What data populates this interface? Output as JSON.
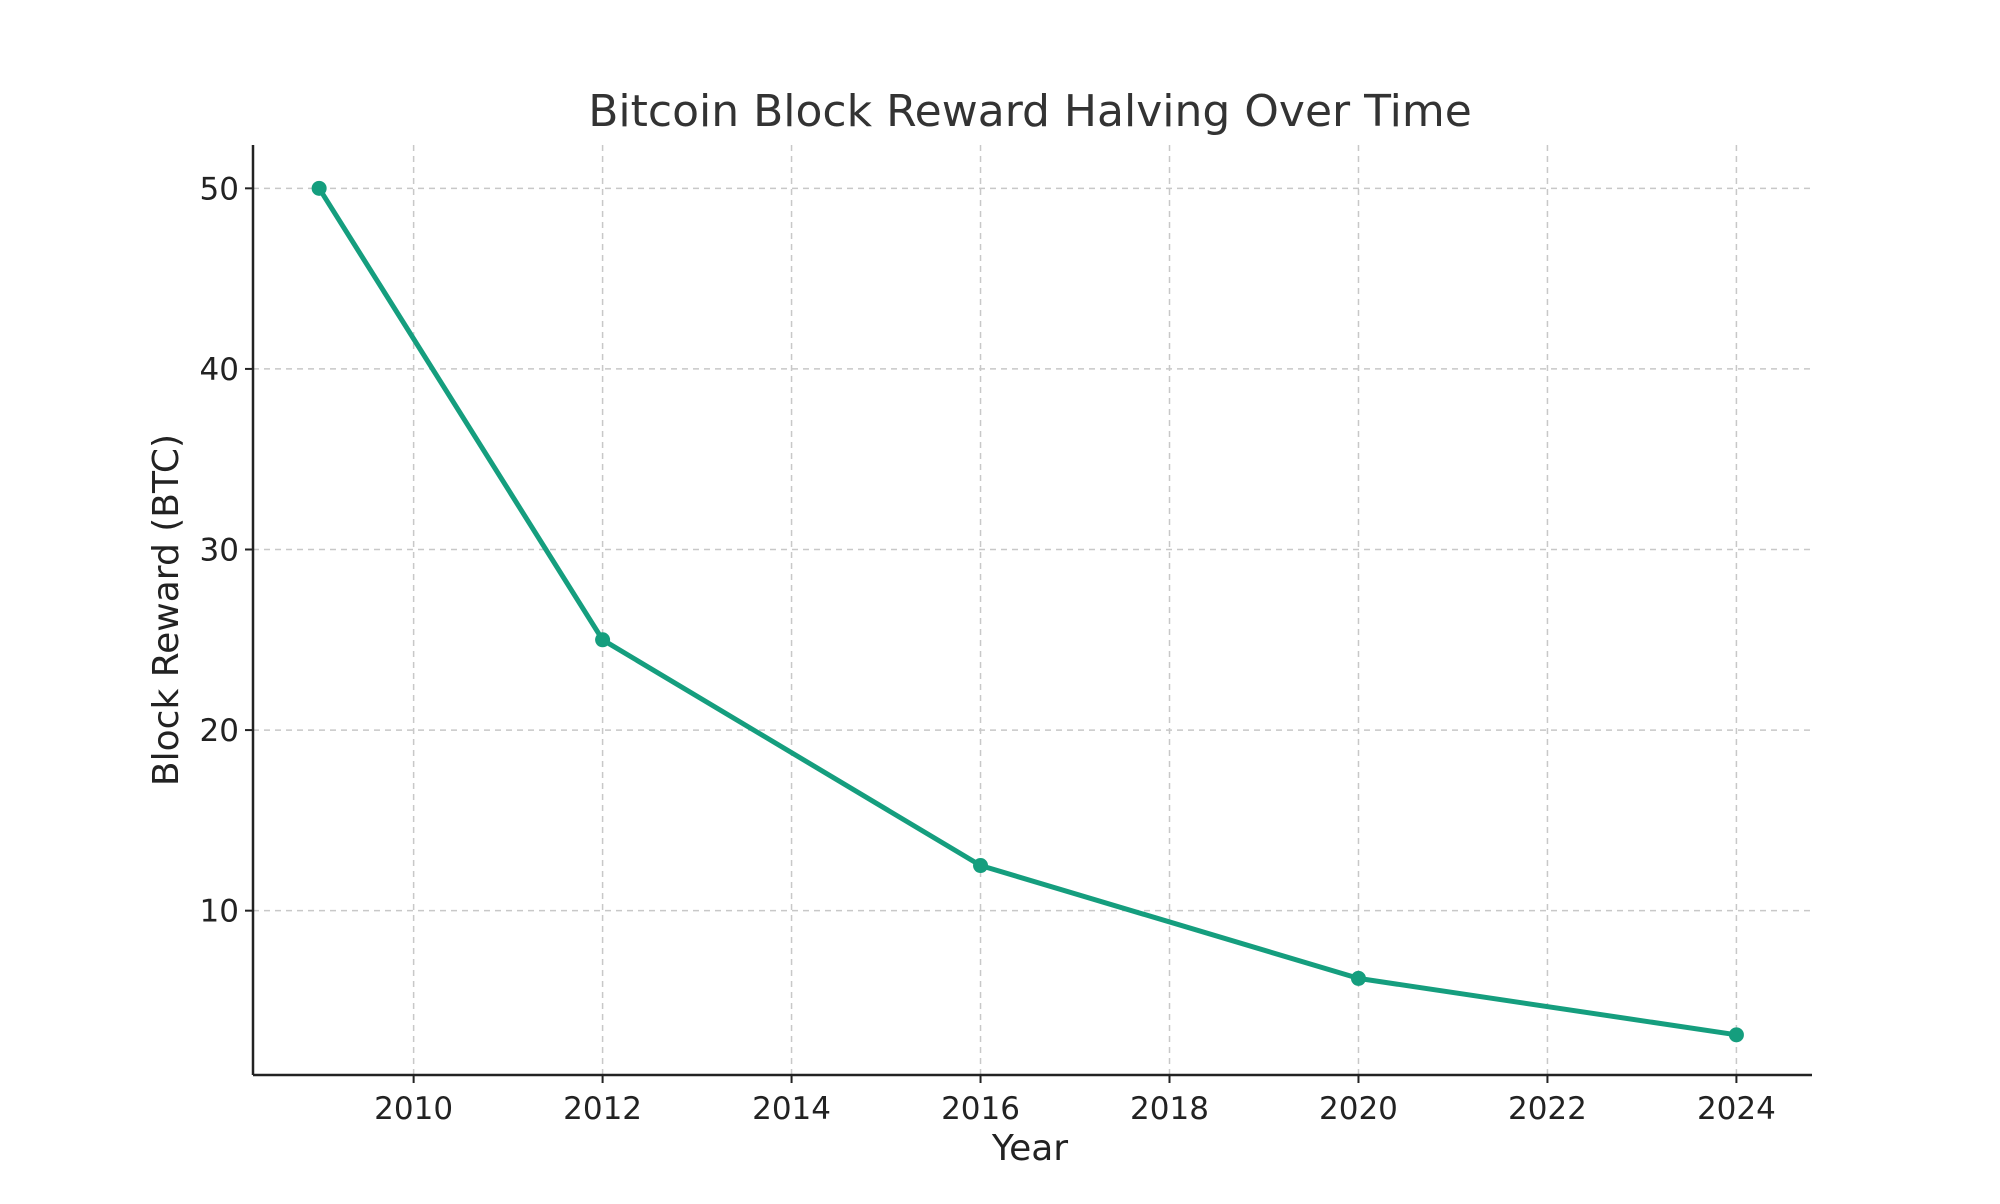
{
  "chart_data": {
    "type": "line",
    "title": "Bitcoin Block Reward Halving Over Time",
    "xlabel": "Year",
    "ylabel": "Block Reward (BTC)",
    "x": [
      2009,
      2012,
      2016,
      2020,
      2024
    ],
    "series": [
      {
        "name": "Block Reward",
        "values": [
          50,
          25,
          12.5,
          6.25,
          3.125
        ],
        "color": "#159e7e"
      }
    ],
    "xlim": [
      2008.3,
      2024.8
    ],
    "ylim": [
      0.9,
      52.4
    ],
    "xticks": [
      2010,
      2012,
      2014,
      2016,
      2018,
      2020,
      2022,
      2024
    ],
    "yticks": [
      10,
      20,
      30,
      40,
      50
    ],
    "grid": true,
    "legend": "none"
  }
}
